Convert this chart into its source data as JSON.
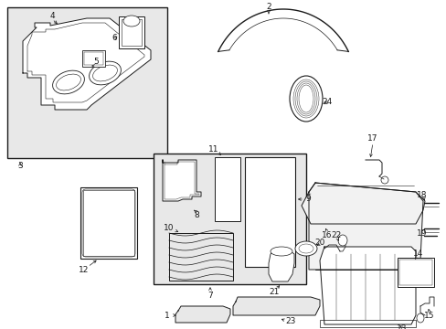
{
  "bg_color": "#ffffff",
  "line_color": "#1a1a1a",
  "gray_fill": "#e8e8e8",
  "light_fill": "#f2f2f2",
  "figsize": [
    4.89,
    3.6
  ],
  "dpi": 100,
  "fs": 6.5,
  "lw": 0.7
}
